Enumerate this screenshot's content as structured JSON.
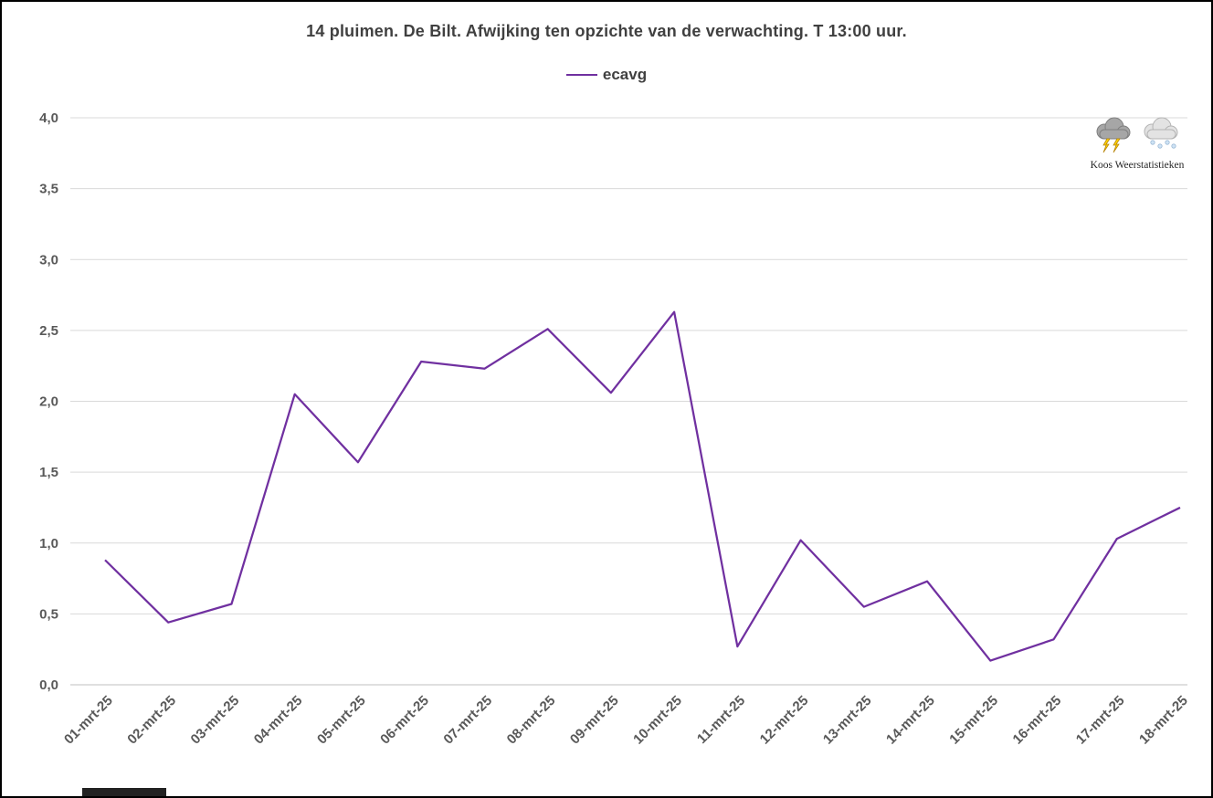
{
  "title": "14 pluimen. De Bilt. Afwijking ten opzichte van de verwachting. T 13:00 uur.",
  "legend": {
    "label": "ecavg",
    "color": "#7030A0"
  },
  "logo": {
    "icons": [
      "storm-cloud",
      "snow-cloud"
    ],
    "caption": "Koos Weerstatistieken"
  },
  "chart_data": {
    "type": "line",
    "title": "14 pluimen. De Bilt. Afwijking ten opzichte van de verwachting. T 13:00 uur.",
    "x": [
      "01-mrt-25",
      "02-mrt-25",
      "03-mrt-25",
      "04-mrt-25",
      "05-mrt-25",
      "06-mrt-25",
      "07-mrt-25",
      "08-mrt-25",
      "09-mrt-25",
      "10-mrt-25",
      "11-mrt-25",
      "12-mrt-25",
      "13-mrt-25",
      "14-mrt-25",
      "15-mrt-25",
      "16-mrt-25",
      "17-mrt-25",
      "18-mrt-25"
    ],
    "series": [
      {
        "name": "ecavg",
        "color": "#7030A0",
        "values": [
          0.88,
          0.44,
          0.57,
          2.05,
          1.57,
          2.28,
          2.23,
          2.51,
          2.06,
          2.63,
          0.27,
          1.02,
          0.55,
          0.73,
          0.17,
          0.32,
          1.03,
          1.25
        ]
      }
    ],
    "xlabel": "",
    "ylabel": "",
    "ylim": [
      0,
      4
    ],
    "ytick_step": 0.5,
    "ytick_labels": [
      "0,0",
      "0,5",
      "1,0",
      "1,5",
      "2,0",
      "2,5",
      "3,0",
      "3,5",
      "4,0"
    ],
    "grid": true,
    "legend_position": "top"
  }
}
